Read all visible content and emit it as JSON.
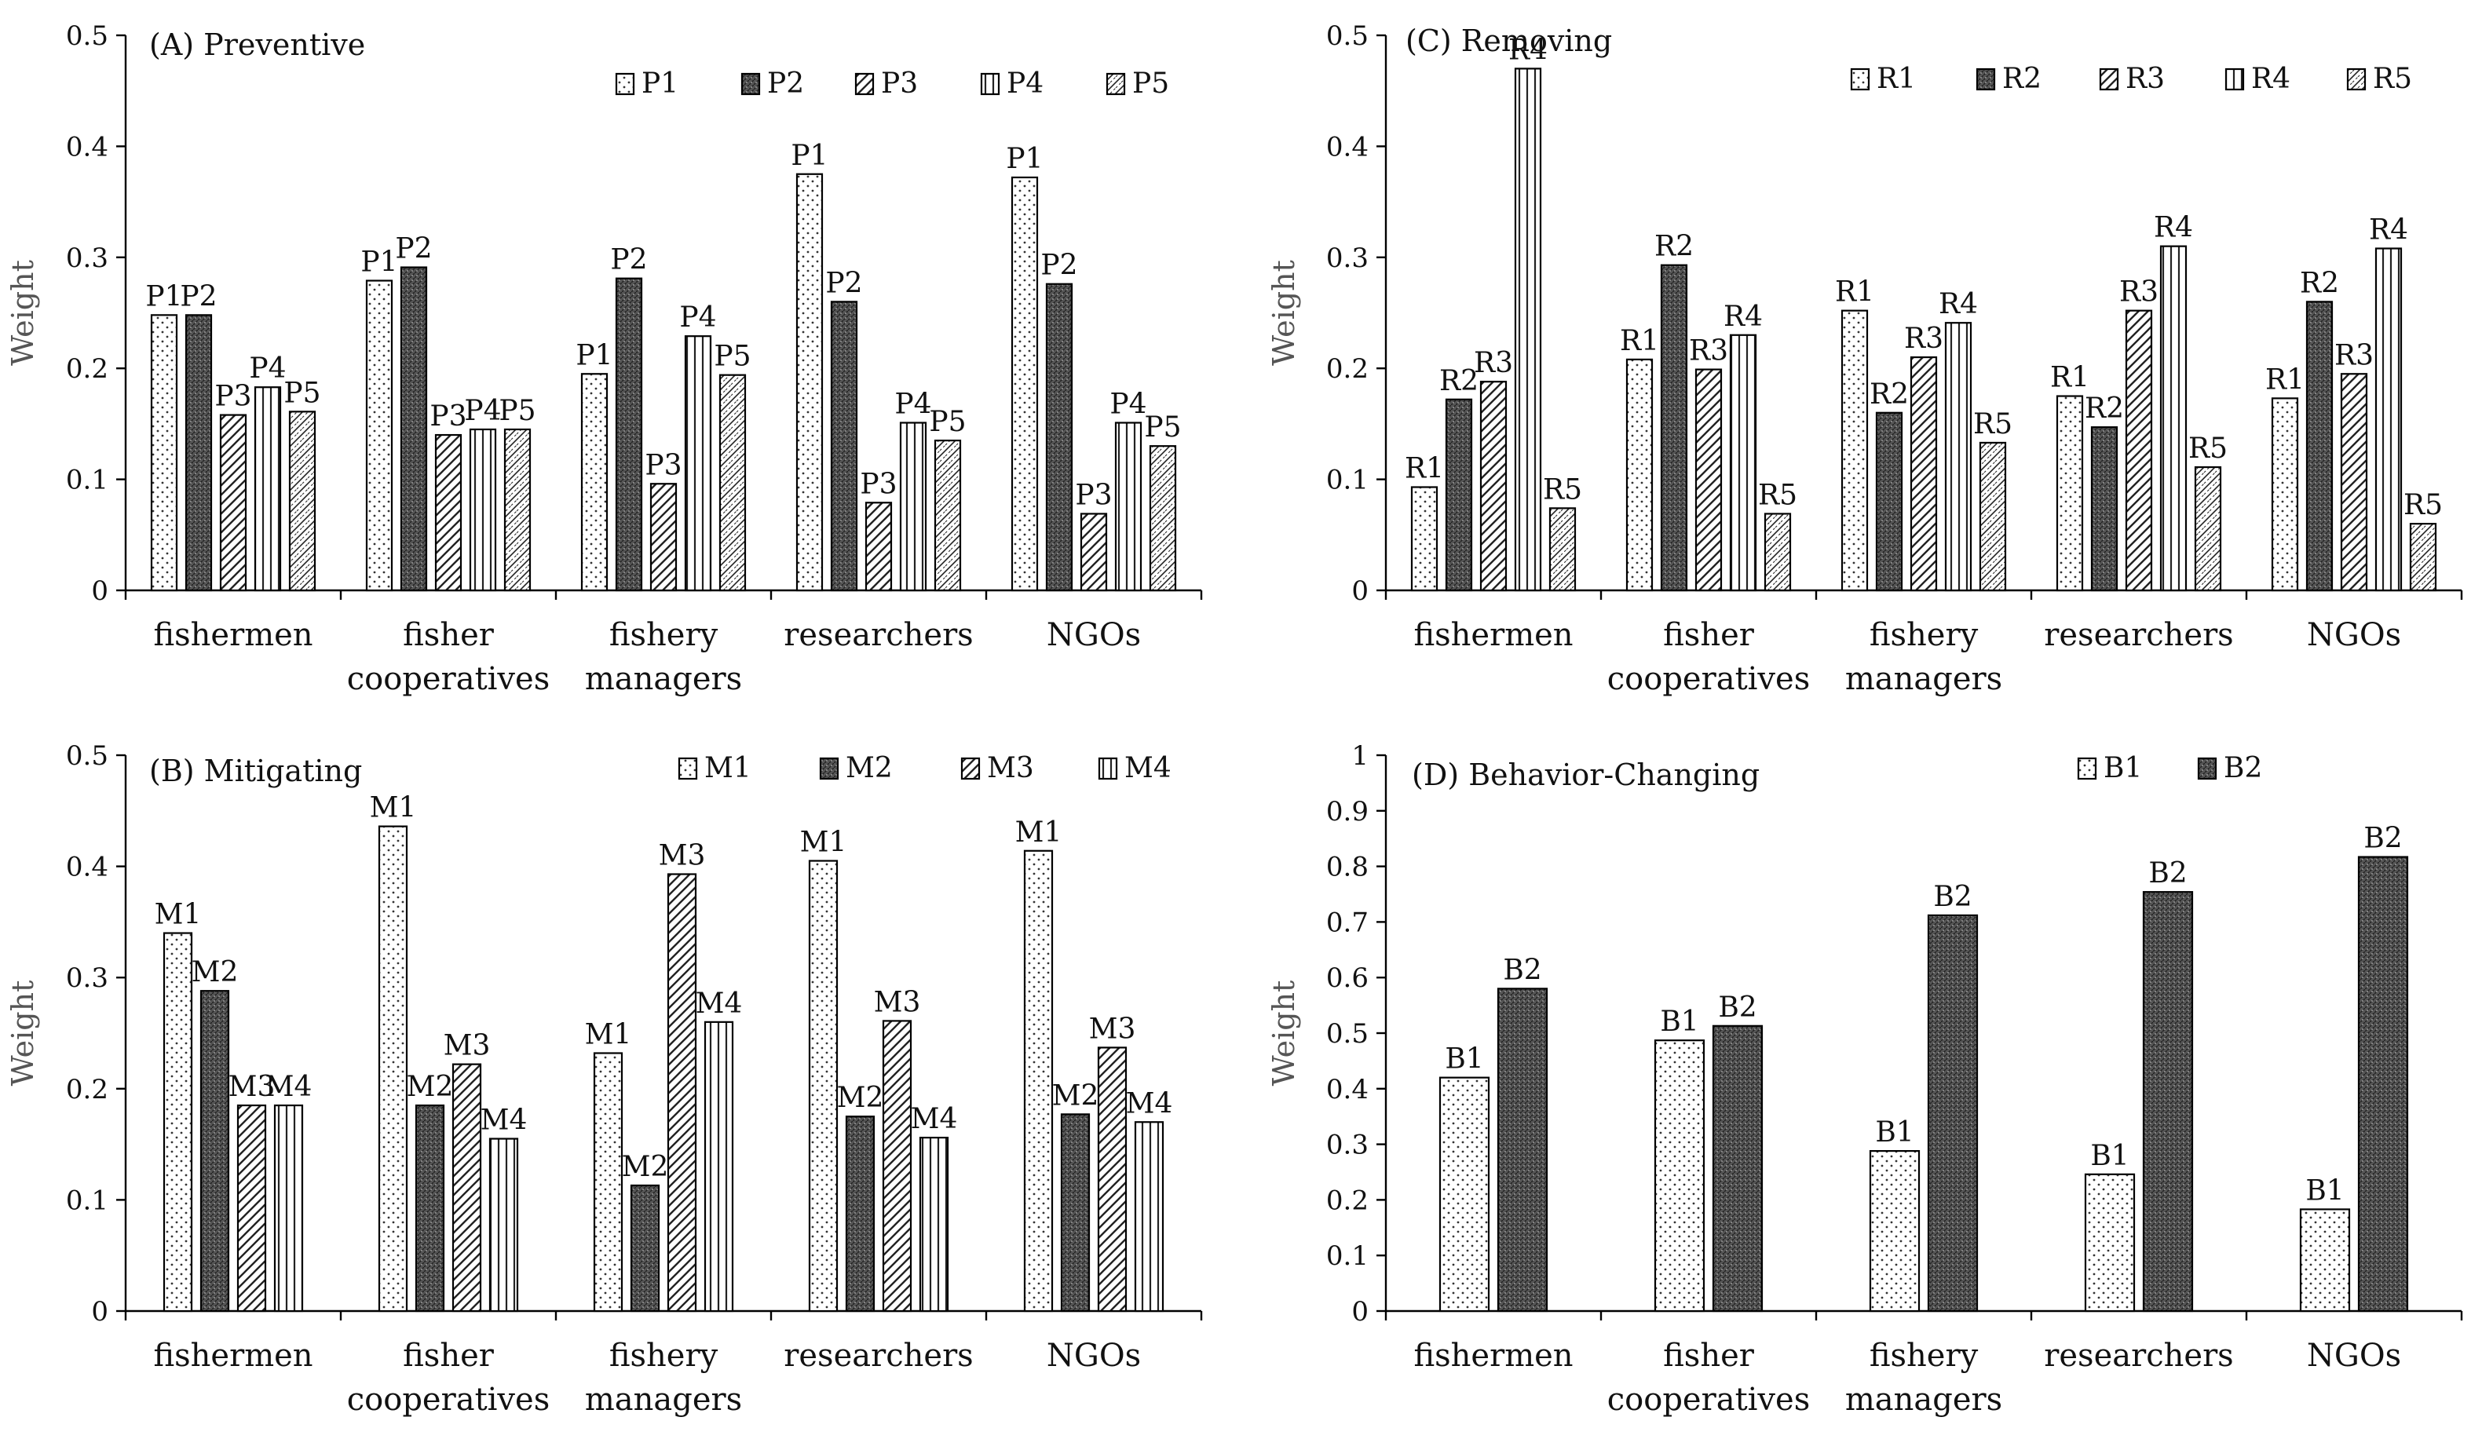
{
  "chart_data": [
    {
      "type": "bar",
      "title": "(A) Preventive",
      "ylabel": "Weight",
      "ylim": [
        0,
        0.5
      ],
      "yticks": [
        "0",
        "0.1",
        "0.2",
        "0.3",
        "0.4",
        "0.5"
      ],
      "categories": [
        [
          "fishermen"
        ],
        [
          "fisher",
          "cooperatives"
        ],
        [
          "fishery",
          "managers"
        ],
        [
          "researchers"
        ],
        [
          "NGOs"
        ]
      ],
      "series": [
        {
          "name": "P1",
          "pattern": "dots",
          "values": [
            0.248,
            0.279,
            0.195,
            0.375,
            0.372
          ]
        },
        {
          "name": "P2",
          "pattern": "dense",
          "values": [
            0.248,
            0.291,
            0.281,
            0.26,
            0.276
          ]
        },
        {
          "name": "P3",
          "pattern": "diagonal",
          "values": [
            0.158,
            0.14,
            0.096,
            0.079,
            0.069
          ]
        },
        {
          "name": "P4",
          "pattern": "vertical",
          "values": [
            0.183,
            0.145,
            0.229,
            0.151,
            0.151
          ]
        },
        {
          "name": "P5",
          "pattern": "rev-diagonal",
          "values": [
            0.161,
            0.145,
            0.194,
            0.135,
            0.13
          ]
        }
      ]
    },
    {
      "type": "bar",
      "title": "(B) Mitigating",
      "ylabel": "Weight",
      "ylim": [
        0,
        0.5
      ],
      "yticks": [
        "0",
        "0.1",
        "0.2",
        "0.3",
        "0.4",
        "0.5"
      ],
      "categories": [
        [
          "fishermen"
        ],
        [
          "fisher",
          "cooperatives"
        ],
        [
          "fishery",
          "managers"
        ],
        [
          "researchers"
        ],
        [
          "NGOs"
        ]
      ],
      "series": [
        {
          "name": "M1",
          "pattern": "dots",
          "values": [
            0.34,
            0.436,
            0.232,
            0.405,
            0.414
          ]
        },
        {
          "name": "M2",
          "pattern": "dense",
          "values": [
            0.288,
            0.185,
            0.113,
            0.175,
            0.177
          ]
        },
        {
          "name": "M3",
          "pattern": "diagonal",
          "values": [
            0.185,
            0.222,
            0.393,
            0.261,
            0.237
          ]
        },
        {
          "name": "M4",
          "pattern": "vertical",
          "values": [
            0.185,
            0.155,
            0.26,
            0.156,
            0.17
          ]
        }
      ]
    },
    {
      "type": "bar",
      "title": "(C) Removing",
      "ylabel": "Weight",
      "ylim": [
        0,
        0.5
      ],
      "yticks": [
        "0",
        "0.1",
        "0.2",
        "0.3",
        "0.4",
        "0.5"
      ],
      "categories": [
        [
          "fishermen"
        ],
        [
          "fisher",
          "cooperatives"
        ],
        [
          "fishery",
          "managers"
        ],
        [
          "researchers"
        ],
        [
          "NGOs"
        ]
      ],
      "series": [
        {
          "name": "R1",
          "pattern": "dots",
          "values": [
            0.093,
            0.208,
            0.252,
            0.175,
            0.173
          ]
        },
        {
          "name": "R2",
          "pattern": "dense",
          "values": [
            0.172,
            0.293,
            0.16,
            0.147,
            0.26
          ]
        },
        {
          "name": "R3",
          "pattern": "diagonal",
          "values": [
            0.188,
            0.199,
            0.21,
            0.252,
            0.195
          ]
        },
        {
          "name": "R4",
          "pattern": "vertical",
          "values": [
            0.47,
            0.23,
            0.241,
            0.31,
            0.308
          ]
        },
        {
          "name": "R5",
          "pattern": "rev-diagonal",
          "values": [
            0.074,
            0.069,
            0.133,
            0.111,
            0.06
          ]
        }
      ]
    },
    {
      "type": "bar",
      "title": "(D) Behavior-Changing",
      "ylabel": "Weight",
      "ylim": [
        0,
        1
      ],
      "yticks": [
        "0",
        "0.1",
        "0.2",
        "0.3",
        "0.4",
        "0.5",
        "0.6",
        "0.7",
        "0.8",
        "0.9",
        "1"
      ],
      "categories": [
        [
          "fishermen"
        ],
        [
          "fisher",
          "cooperatives"
        ],
        [
          "fishery",
          "managers"
        ],
        [
          "researchers"
        ],
        [
          "NGOs"
        ]
      ],
      "series": [
        {
          "name": "B1",
          "pattern": "dots",
          "values": [
            0.42,
            0.487,
            0.288,
            0.246,
            0.183
          ]
        },
        {
          "name": "B2",
          "pattern": "dense",
          "values": [
            0.58,
            0.513,
            0.712,
            0.754,
            0.817
          ]
        }
      ]
    }
  ]
}
